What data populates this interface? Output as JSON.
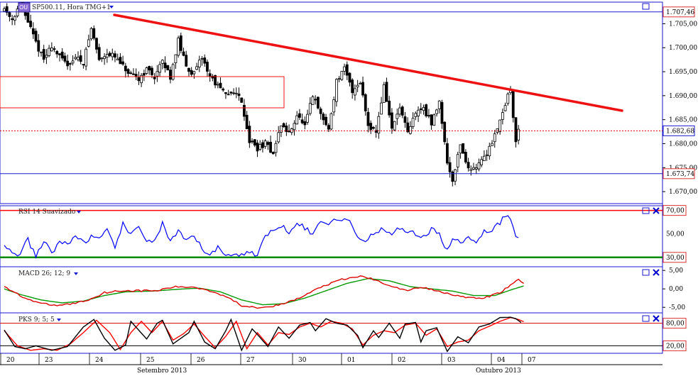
{
  "main_panel": {
    "symbol_prefix": "OU",
    "title": "SP500.11, Hora TMG+1",
    "dropdown_icon": "triangle-down-icon",
    "window_icon": "square-icon",
    "price_ticks": [
      "1.705,00",
      "1.700,00",
      "1.695,00",
      "1.690,00",
      "1.685,00",
      "1.680,00",
      "1.675,00",
      "1.670,00"
    ],
    "price_ticks_values": [
      1705,
      1700,
      1695,
      1690,
      1685,
      1680,
      1675,
      1670
    ],
    "levels": {
      "top_label": "1.707,46",
      "top_value": 1707.46,
      "current_label": "1.682,68",
      "current_value": 1682.68,
      "bottom_label": "1.673,74",
      "bottom_value": 1673.74
    },
    "ylim": [
      1667.5,
      1709.5
    ]
  },
  "rsi_panel": {
    "title": "RSI 14 Suavizado",
    "levels": [
      "70,00",
      "50,00",
      "30,00"
    ],
    "level_values": [
      70,
      50,
      30
    ],
    "ylim": [
      22,
      74
    ]
  },
  "macd_panel": {
    "title": "MACD 26; 12; 9",
    "ticks": [
      "5,00",
      "0,00",
      "-5,00"
    ],
    "tick_values": [
      5,
      0,
      -5
    ],
    "ylim": [
      -6.5,
      6
    ]
  },
  "pks_panel": {
    "title": "PKS 9; 5; 5",
    "levels": [
      "80,00",
      "20,00"
    ],
    "level_values": [
      80,
      20
    ],
    "ylim": [
      0,
      100
    ]
  },
  "time_axis": {
    "day_labels": [
      "20",
      "23",
      "24",
      "25",
      "26",
      "27",
      "30",
      "01",
      "02",
      "03",
      "04",
      "07"
    ],
    "month_labels": [
      "Setembro 2013",
      "Outubro 2013"
    ]
  },
  "colors": {
    "panel_border": "#1a1ad0",
    "trendline": "#ee1111",
    "candle": "#000000",
    "rsi_line": "#0000ff",
    "rsi_upper": "#ff0000",
    "rsi_lower": "#008800",
    "macd_line": "#dd0000",
    "signal_line": "#009900",
    "pks_fast": "#000000",
    "pks_slow": "#ff0000",
    "close_icon": "#0000cc"
  },
  "chart_data": {
    "type": "candlestick",
    "x_labels": [
      "20",
      "23",
      "24",
      "25",
      "26",
      "27",
      "30",
      "01",
      "02",
      "03",
      "04",
      "07"
    ],
    "segments": [
      [
        0,
        1708.2
      ],
      [
        3,
        1706.0
      ],
      [
        6,
        1709.0
      ],
      [
        9,
        1705.5
      ],
      [
        12,
        1701.0
      ],
      [
        15,
        1697.5
      ],
      [
        18,
        1700.5
      ],
      [
        21,
        1698.0
      ],
      [
        24,
        1696.5
      ],
      [
        27,
        1698.0
      ],
      [
        30,
        1697.0
      ],
      [
        33,
        1704.0
      ],
      [
        36,
        1697.5
      ],
      [
        39,
        1699.0
      ],
      [
        42,
        1698.0
      ],
      [
        45,
        1696.0
      ],
      [
        48,
        1694.0
      ],
      [
        51,
        1693.5
      ],
      [
        54,
        1695.5
      ],
      [
        57,
        1694.0
      ],
      [
        60,
        1697.0
      ],
      [
        63,
        1694.0
      ],
      [
        66,
        1701.5
      ],
      [
        69,
        1696.0
      ],
      [
        72,
        1694.5
      ],
      [
        75,
        1698.0
      ],
      [
        78,
        1694.0
      ],
      [
        81,
        1692.0
      ],
      [
        84,
        1690.0
      ],
      [
        87,
        1691.0
      ],
      [
        90,
        1689.0
      ],
      [
        93,
        1680.5
      ],
      [
        96,
        1679.0
      ],
      [
        99,
        1680.0
      ],
      [
        102,
        1678.0
      ],
      [
        105,
        1684.0
      ],
      [
        108,
        1682.0
      ],
      [
        111,
        1686.0
      ],
      [
        114,
        1683.5
      ],
      [
        117,
        1690.0
      ],
      [
        120,
        1686.0
      ],
      [
        123,
        1683.0
      ],
      [
        126,
        1693.0
      ],
      [
        129,
        1695.5
      ],
      [
        132,
        1691.0
      ],
      [
        135,
        1693.0
      ],
      [
        138,
        1684.0
      ],
      [
        141,
        1682.5
      ],
      [
        144,
        1692.0
      ],
      [
        147,
        1683.0
      ],
      [
        150,
        1687.5
      ],
      [
        153,
        1682.0
      ],
      [
        156,
        1686.5
      ],
      [
        159,
        1687.5
      ],
      [
        162,
        1684.0
      ],
      [
        165,
        1689.0
      ],
      [
        168,
        1676.0
      ],
      [
        170,
        1672.5
      ],
      [
        173,
        1680.0
      ],
      [
        176,
        1674.5
      ],
      [
        179,
        1675.5
      ],
      [
        182,
        1677.0
      ],
      [
        185,
        1680.5
      ],
      [
        188,
        1685.0
      ],
      [
        191,
        1690.0
      ],
      [
        192,
        1691.0
      ],
      [
        194,
        1680.5
      ],
      [
        195,
        1682.7
      ]
    ],
    "rsi_segments": [
      [
        0,
        42
      ],
      [
        3,
        33
      ],
      [
        6,
        33
      ],
      [
        9,
        45
      ],
      [
        12,
        30
      ],
      [
        15,
        44
      ],
      [
        18,
        34
      ],
      [
        21,
        44
      ],
      [
        24,
        40
      ],
      [
        27,
        49
      ],
      [
        30,
        43
      ],
      [
        33,
        47
      ],
      [
        36,
        45
      ],
      [
        39,
        52
      ],
      [
        42,
        40
      ],
      [
        45,
        58
      ],
      [
        48,
        48
      ],
      [
        51,
        57
      ],
      [
        54,
        45
      ],
      [
        57,
        43
      ],
      [
        60,
        59
      ],
      [
        63,
        43
      ],
      [
        66,
        51
      ],
      [
        69,
        44
      ],
      [
        72,
        48
      ],
      [
        75,
        37
      ],
      [
        78,
        33
      ],
      [
        81,
        38
      ],
      [
        84,
        31
      ],
      [
        87,
        34
      ],
      [
        90,
        32
      ],
      [
        93,
        34
      ],
      [
        96,
        33
      ],
      [
        99,
        48
      ],
      [
        102,
        52
      ],
      [
        105,
        58
      ],
      [
        108,
        52
      ],
      [
        111,
        61
      ],
      [
        114,
        55
      ],
      [
        117,
        49
      ],
      [
        120,
        62
      ],
      [
        123,
        58
      ],
      [
        126,
        64
      ],
      [
        129,
        62
      ],
      [
        132,
        58
      ],
      [
        135,
        43
      ],
      [
        138,
        47
      ],
      [
        141,
        52
      ],
      [
        144,
        55
      ],
      [
        147,
        49
      ],
      [
        150,
        55
      ],
      [
        153,
        53
      ],
      [
        156,
        50
      ],
      [
        159,
        48
      ],
      [
        162,
        53
      ],
      [
        165,
        51
      ],
      [
        168,
        35
      ],
      [
        170,
        46
      ],
      [
        173,
        42
      ],
      [
        176,
        48
      ],
      [
        179,
        44
      ],
      [
        182,
        52
      ],
      [
        185,
        54
      ],
      [
        188,
        60
      ],
      [
        191,
        67
      ],
      [
        192,
        64
      ],
      [
        194,
        50
      ],
      [
        195,
        49
      ]
    ],
    "macd_segments": [
      [
        0,
        0.5
      ],
      [
        4,
        -1.0
      ],
      [
        8,
        -2.5
      ],
      [
        14,
        -4.0
      ],
      [
        20,
        -4.5
      ],
      [
        26,
        -4.0
      ],
      [
        32,
        -3.0
      ],
      [
        38,
        -1.0
      ],
      [
        44,
        -0.5
      ],
      [
        52,
        -0.5
      ],
      [
        58,
        -0.5
      ],
      [
        64,
        0.5
      ],
      [
        72,
        0.5
      ],
      [
        78,
        -0.5
      ],
      [
        84,
        -2.0
      ],
      [
        90,
        -4.5
      ],
      [
        96,
        -5.0
      ],
      [
        104,
        -4.5
      ],
      [
        112,
        -2.5
      ],
      [
        120,
        0.5
      ],
      [
        128,
        2.5
      ],
      [
        136,
        3.5
      ],
      [
        144,
        1.5
      ],
      [
        152,
        -0.5
      ],
      [
        158,
        0.5
      ],
      [
        164,
        -0.5
      ],
      [
        170,
        -1.5
      ],
      [
        176,
        -2.5
      ],
      [
        182,
        -2.5
      ],
      [
        188,
        -1.0
      ],
      [
        192,
        1.0
      ],
      [
        195,
        2.5
      ],
      [
        197,
        1.5
      ]
    ],
    "signal_segments": [
      [
        0,
        0.0
      ],
      [
        6,
        -1.5
      ],
      [
        14,
        -3.0
      ],
      [
        22,
        -3.8
      ],
      [
        30,
        -3.3
      ],
      [
        38,
        -1.8
      ],
      [
        46,
        -0.8
      ],
      [
        56,
        -0.6
      ],
      [
        66,
        -0.1
      ],
      [
        74,
        0.2
      ],
      [
        82,
        -0.8
      ],
      [
        90,
        -3.0
      ],
      [
        98,
        -4.3
      ],
      [
        106,
        -4.0
      ],
      [
        114,
        -2.5
      ],
      [
        122,
        -0.5
      ],
      [
        130,
        1.5
      ],
      [
        138,
        2.8
      ],
      [
        146,
        2.2
      ],
      [
        154,
        0.6
      ],
      [
        162,
        0.0
      ],
      [
        170,
        -0.6
      ],
      [
        178,
        -1.8
      ],
      [
        186,
        -1.8
      ],
      [
        192,
        -0.3
      ],
      [
        197,
        0.8
      ]
    ],
    "pks_fast_segments": [
      [
        0,
        62
      ],
      [
        4,
        18
      ],
      [
        8,
        12
      ],
      [
        12,
        20
      ],
      [
        18,
        8
      ],
      [
        24,
        18
      ],
      [
        30,
        70
      ],
      [
        34,
        90
      ],
      [
        38,
        40
      ],
      [
        42,
        8
      ],
      [
        46,
        22
      ],
      [
        48,
        85
      ],
      [
        54,
        38
      ],
      [
        58,
        80
      ],
      [
        60,
        88
      ],
      [
        64,
        25
      ],
      [
        70,
        55
      ],
      [
        72,
        85
      ],
      [
        76,
        30
      ],
      [
        80,
        12
      ],
      [
        84,
        60
      ],
      [
        86,
        90
      ],
      [
        90,
        8
      ],
      [
        94,
        65
      ],
      [
        96,
        50
      ],
      [
        100,
        18
      ],
      [
        104,
        70
      ],
      [
        108,
        40
      ],
      [
        112,
        75
      ],
      [
        116,
        82
      ],
      [
        118,
        60
      ],
      [
        122,
        92
      ],
      [
        126,
        80
      ],
      [
        130,
        75
      ],
      [
        134,
        48
      ],
      [
        136,
        15
      ],
      [
        140,
        60
      ],
      [
        142,
        42
      ],
      [
        146,
        80
      ],
      [
        150,
        40
      ],
      [
        152,
        78
      ],
      [
        156,
        82
      ],
      [
        158,
        30
      ],
      [
        160,
        60
      ],
      [
        164,
        68
      ],
      [
        168,
        5
      ],
      [
        172,
        44
      ],
      [
        176,
        28
      ],
      [
        180,
        70
      ],
      [
        184,
        78
      ],
      [
        188,
        95
      ],
      [
        192,
        96
      ],
      [
        194,
        92
      ],
      [
        196,
        82
      ]
    ],
    "pks_slow_segments": [
      [
        0,
        60
      ],
      [
        5,
        20
      ],
      [
        10,
        8
      ],
      [
        15,
        12
      ],
      [
        20,
        8
      ],
      [
        25,
        25
      ],
      [
        30,
        55
      ],
      [
        35,
        88
      ],
      [
        40,
        55
      ],
      [
        44,
        10
      ],
      [
        48,
        55
      ],
      [
        52,
        85
      ],
      [
        56,
        55
      ],
      [
        60,
        85
      ],
      [
        64,
        35
      ],
      [
        68,
        52
      ],
      [
        72,
        78
      ],
      [
        76,
        45
      ],
      [
        80,
        15
      ],
      [
        84,
        45
      ],
      [
        88,
        85
      ],
      [
        92,
        12
      ],
      [
        96,
        55
      ],
      [
        100,
        22
      ],
      [
        104,
        55
      ],
      [
        108,
        50
      ],
      [
        112,
        70
      ],
      [
        116,
        80
      ],
      [
        120,
        70
      ],
      [
        124,
        85
      ],
      [
        128,
        80
      ],
      [
        132,
        65
      ],
      [
        136,
        22
      ],
      [
        140,
        48
      ],
      [
        144,
        60
      ],
      [
        148,
        55
      ],
      [
        152,
        75
      ],
      [
        156,
        80
      ],
      [
        160,
        48
      ],
      [
        164,
        65
      ],
      [
        168,
        18
      ],
      [
        172,
        30
      ],
      [
        176,
        35
      ],
      [
        180,
        60
      ],
      [
        184,
        72
      ],
      [
        188,
        85
      ],
      [
        192,
        95
      ],
      [
        195,
        90
      ],
      [
        197,
        84
      ]
    ],
    "xlim": [
      0,
      199
    ]
  }
}
